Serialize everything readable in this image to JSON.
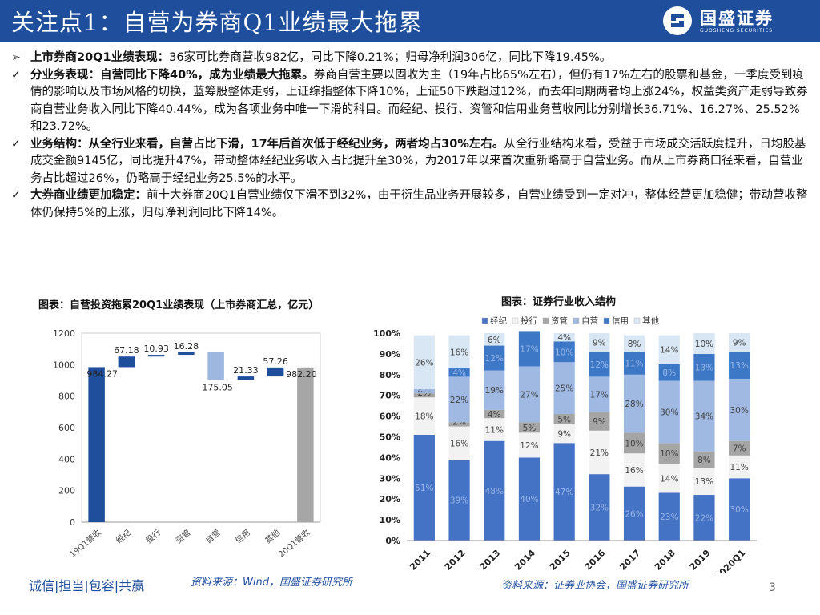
{
  "header": {
    "title": "关注点1：自营为券商Q1业绩最大拖累",
    "brand_name": "国盛证券",
    "brand_sub": "GUOSHENG SECURITIES",
    "bar_color": "#1f4f9c"
  },
  "bullets": [
    {
      "marker": "➢",
      "bold": "上市券商20Q1业绩表现：",
      "text": "36家可比券商营收982亿，同比下降0.21%；归母净利润306亿，同比下降19.45%。"
    },
    {
      "marker": "✓",
      "bold": "分业务表现：自营同比下降40%，成为业绩最大拖累。",
      "text": "券商自营主要以固收为主（19年占比65%左右），但仍有17%左右的股票和基金，一季度受到疫情的影响以及市场风格的切换，蓝筹股整体走弱，上证综指整体下降10%，上证50下跌超过12%，而去年同期两者均上涨24%，权益类资产走弱导致券商自营业务收入同比下降40.44%，成为各项业务中唯一下滑的科目。而经纪、投行、资管和信用业务营收同比分别增长36.71%、16.27%、25.52%和23.72%。"
    },
    {
      "marker": "✓",
      "bold": "业务结构：从全行业来看，自营占比下滑，17年后首次低于经纪业务，两者均占30%左右。",
      "text": "从全行业结构来看，受益于市场成交活跃度提升，日均股基成交金额9145亿，同比提升47%，带动整体经纪业务收入占比提升至30%，为2017年以来首次重新略高于自营业务。而从上市券商口径来看，自营业务占比超过26%，仍略高于经纪业务25.5%的水平。"
    },
    {
      "marker": "✓",
      "bold": "大券商业绩更加稳定：",
      "text": "前十大券商20Q1自营业绩仅下滑不到32%，由于衍生品业务开展较多，自营业绩受到一定对冲，整体经营更加稳健；带动营收整体仍保持5%的上涨，归母净利润同比下降14%。"
    }
  ],
  "chart_left": {
    "caption": "图表：自营投资拖累20Q1业绩表现（上市券商汇总，亿元）",
    "source": "资料来源：Wind，国盛证券研究所"
  },
  "chart_right": {
    "caption": "图表：证券行业收入结构",
    "source": "资料来源：证券业协会，国盛证券研究所"
  },
  "footer": {
    "slogan": "诚信|担当|包容|共赢",
    "page": "3"
  },
  "chart_data": [
    {
      "type": "bar",
      "subtype": "waterfall",
      "categories": [
        "19Q1营收",
        "经纪",
        "投行",
        "资管",
        "自营",
        "信用",
        "其他",
        "20Q1营收"
      ],
      "values": [
        984.27,
        67.18,
        10.93,
        16.28,
        -175.05,
        21.33,
        57.26,
        982.2
      ],
      "value_labels": [
        "984.27",
        "67.18",
        "10.93",
        "16.28",
        "-175.05",
        "21.33",
        "57.26",
        "982.20"
      ],
      "kinds": [
        "total",
        "delta",
        "delta",
        "delta",
        "delta",
        "delta",
        "delta",
        "total"
      ],
      "ylim": [
        0,
        1200
      ],
      "yticks": [
        0,
        200,
        400,
        600,
        800,
        1000,
        1200
      ],
      "colors": {
        "start": "#1f4f9c",
        "increase": "#1f4f9c",
        "decrease": "#9db7de",
        "end": "#a6a6a6"
      }
    },
    {
      "type": "bar",
      "subtype": "stacked-percent",
      "categories": [
        "2011",
        "2012",
        "2013",
        "2014",
        "2015",
        "2016",
        "2017",
        "2018",
        "2019",
        "2020Q1"
      ],
      "series": [
        {
          "name": "经纪",
          "color": "#4472c4",
          "values": [
            51,
            39,
            48,
            40,
            47,
            32,
            26,
            23,
            22,
            30
          ],
          "labels": [
            "51%",
            "39%",
            "48%",
            "40%",
            "47%",
            "32%",
            "26%",
            "23%",
            "22%",
            "30%"
          ]
        },
        {
          "name": "投行",
          "color": "#f2f2f2",
          "values": [
            18,
            16,
            11,
            12,
            9,
            21,
            16,
            14,
            13,
            11
          ],
          "labels": [
            "18%",
            "16%",
            "11%",
            "12%",
            "9%",
            "21%",
            "16%",
            "14%",
            "13%",
            "11%"
          ]
        },
        {
          "name": "资管",
          "color": "#a5a5a5",
          "values": [
            2,
            2,
            4,
            5,
            5,
            9,
            10,
            10,
            8,
            7
          ],
          "labels": [
            "2%",
            "2%",
            "4%",
            "5%",
            "5%",
            "9%",
            "10%",
            "10%",
            "8%",
            "7%"
          ]
        },
        {
          "name": "自营",
          "color": "#9fb9e3",
          "values": [
            2,
            22,
            19,
            27,
            25,
            17,
            28,
            30,
            34,
            30
          ],
          "labels": [
            "2%",
            "22%",
            "19%",
            "27%",
            "25%",
            "17%",
            "28%",
            "30%",
            "34%",
            "30%"
          ]
        },
        {
          "name": "信用",
          "color": "#3d78c6",
          "values": [
            0,
            4,
            12,
            17,
            10,
            12,
            11,
            8,
            13,
            13
          ],
          "labels": [
            "0%",
            "4%",
            "12%",
            "17%",
            "10%",
            "12%",
            "11%",
            "8%",
            "13%",
            "13%"
          ]
        },
        {
          "name": "其他",
          "color": "#d9e7f4",
          "values": [
            26,
            16,
            6,
            0,
            4,
            9,
            8,
            14,
            10,
            9
          ],
          "labels": [
            "26%",
            "16%",
            "6%",
            "",
            "4%",
            "9%",
            "8%",
            "14%",
            "10%",
            "9%"
          ]
        }
      ],
      "ylim": [
        0,
        100
      ],
      "yticks": [
        "0%",
        "10%",
        "20%",
        "30%",
        "40%",
        "50%",
        "60%",
        "70%",
        "80%",
        "90%",
        "100%"
      ],
      "legend": "top"
    }
  ]
}
